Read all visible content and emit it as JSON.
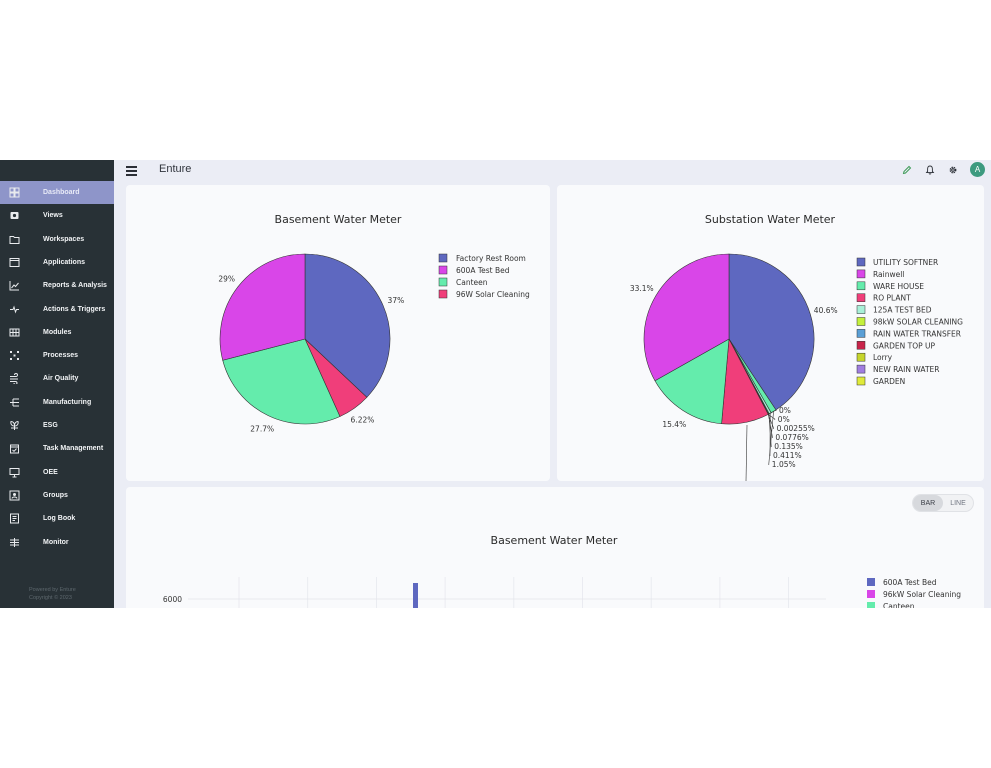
{
  "app": {
    "title": "Enture",
    "avatar_letter": "A"
  },
  "sidebar": {
    "items": [
      {
        "label": "Dashboard",
        "icon": "dashboard-icon",
        "active": true
      },
      {
        "label": "Views",
        "icon": "views-icon"
      },
      {
        "label": "Workspaces",
        "icon": "folder-icon"
      },
      {
        "label": "Applications",
        "icon": "window-icon"
      },
      {
        "label": "Reports & Analysis",
        "icon": "chart-line-icon"
      },
      {
        "label": "Actions & Triggers",
        "icon": "bolt-icon"
      },
      {
        "label": "Modules",
        "icon": "grid-icon"
      },
      {
        "label": "Processes",
        "icon": "processes-icon"
      },
      {
        "label": "Air Quality",
        "icon": "air-icon"
      },
      {
        "label": "Manufacturing",
        "icon": "manufacturing-icon"
      },
      {
        "label": "ESG",
        "icon": "leaf-icon"
      },
      {
        "label": "Task Management",
        "icon": "calendar-check-icon"
      },
      {
        "label": "OEE",
        "icon": "monitor-icon"
      },
      {
        "label": "Groups",
        "icon": "groups-icon"
      },
      {
        "label": "Log Book",
        "icon": "book-icon"
      },
      {
        "label": "Monitor",
        "icon": "monitor-list-icon"
      }
    ],
    "footer_line1": "Powered by Enture",
    "footer_line2": "Copyright © 2023"
  },
  "topbar": {
    "icons": [
      "pencil-icon",
      "bell-icon",
      "gear-icon"
    ]
  },
  "colors": {
    "series": [
      "#5e68c0",
      "#d946e8",
      "#64ecac",
      "#f03e7a",
      "#c4f03c",
      "#5a9fd6",
      "#c8244a",
      "#c6d52c",
      "#a07ee0",
      "#e0ea3a"
    ]
  },
  "chart_data": [
    {
      "type": "pie",
      "title": "Basement Water Meter",
      "labels": [
        "Factory Rest Room",
        "600A Test Bed",
        "Canteen",
        "96W Solar Cleaning"
      ],
      "values": [
        37,
        29,
        27.7,
        6.22
      ],
      "slice_labels": [
        "37%",
        "29%",
        "27.7%",
        "6.22%"
      ],
      "legend": "right"
    },
    {
      "type": "pie",
      "title": "Substation Water Meter",
      "labels": [
        "UTILITY SOFTNER",
        "Rainwell",
        "WARE HOUSE",
        "RO PLANT",
        "125A TEST BED",
        "98kW SOLAR CLEANING",
        "RAIN WATER TRANSFER",
        "GARDEN TOP UP",
        "Lorry",
        "NEW RAIN WATER",
        "GARDEN"
      ],
      "legend_colors": [
        "#5e68c0",
        "#d946e8",
        "#64ecac",
        "#f03e7a",
        "#a8f0d8",
        "#c4f03c",
        "#5a9fd6",
        "#c8244a",
        "#c6d52c",
        "#a07ee0",
        "#e0ea3a"
      ],
      "slices": [
        {
          "label": "40.6%",
          "value": 40.6,
          "color": "#5e68c0"
        },
        {
          "label": "1.05%",
          "value": 1.05,
          "color": "#64ecac"
        },
        {
          "label": "0.411%",
          "value": 0.411,
          "color": "#a8f0d8"
        },
        {
          "label": "0.135%",
          "value": 0.135,
          "color": "#c4f03c"
        },
        {
          "label": "0.0776%",
          "value": 0.0776,
          "color": "#5a9fd6"
        },
        {
          "label": "0.00255%",
          "value": 0.00255,
          "color": "#c8244a"
        },
        {
          "label": "0%",
          "value": 0,
          "color": "#c6d52c"
        },
        {
          "label": "0%",
          "value": 0,
          "color": "#a07ee0"
        },
        {
          "label": "",
          "value": 9.0,
          "color": "#f03e7a"
        },
        {
          "label": "15.4%",
          "value": 15.4,
          "color": "#64ecac"
        },
        {
          "label": "33.1%",
          "value": 33.1,
          "color": "#d946e8"
        }
      ],
      "legend": "right"
    },
    {
      "type": "bar",
      "title": "Basement Water Meter",
      "series": [
        {
          "name": "600A Test Bed",
          "color": "#5e68c0"
        },
        {
          "name": "96kW Solar Cleaning",
          "color": "#d946e8"
        },
        {
          "name": "Canteen",
          "color": "#64ecac"
        }
      ],
      "y_ticks": [
        "6000"
      ],
      "mode_options": [
        "BAR",
        "LINE"
      ],
      "selected_mode": "BAR"
    }
  ]
}
